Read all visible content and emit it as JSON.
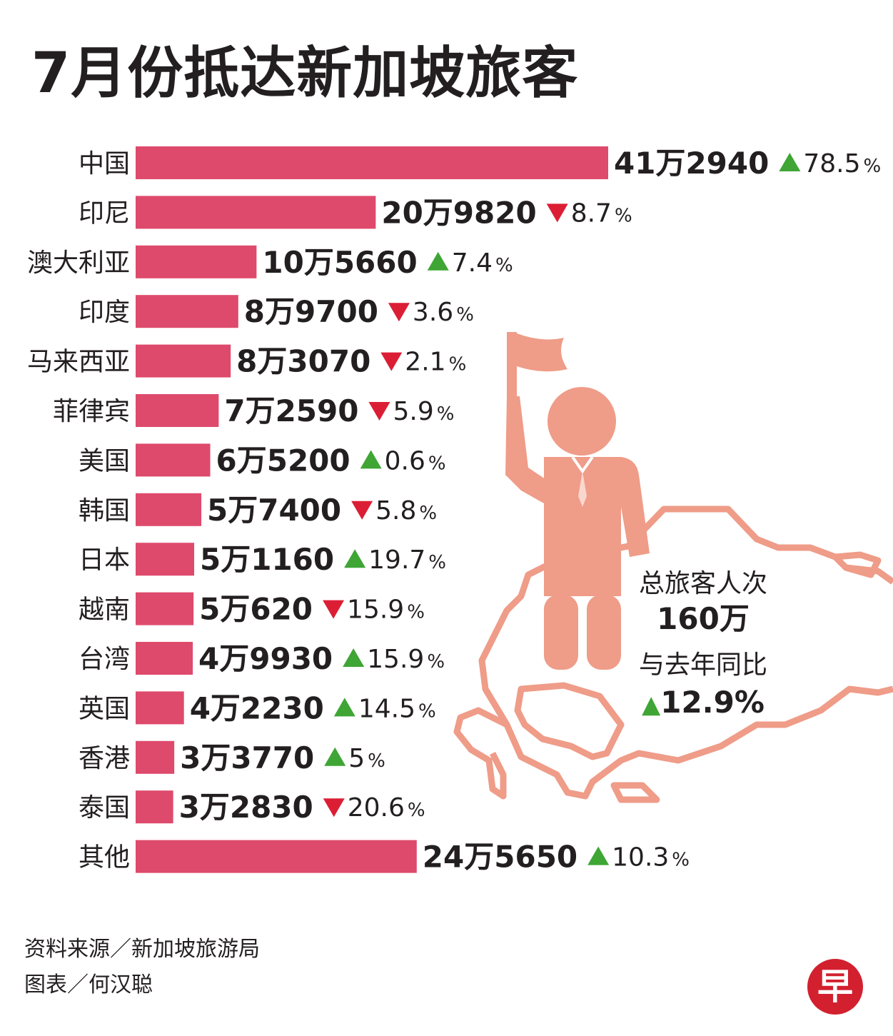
{
  "title": "7月份抵达新加坡旅客",
  "chart_data": {
    "type": "bar",
    "orientation": "horizontal",
    "unit": "travellers",
    "categories": [
      "中国",
      "印尼",
      "澳大利亚",
      "印度",
      "马来西亚",
      "菲律宾",
      "美国",
      "韩国",
      "日本",
      "越南",
      "台湾",
      "英国",
      "香港",
      "泰国",
      "其他"
    ],
    "values": [
      412940,
      209820,
      105660,
      89700,
      83070,
      72590,
      65200,
      57400,
      51160,
      50620,
      49930,
      42230,
      33770,
      32830,
      245650
    ],
    "value_labels": [
      "41万2940",
      "20万9820",
      "10万5660",
      "8万9700",
      "8万3070",
      "7万2590",
      "6万5200",
      "5万7400",
      "5万1160",
      "5万620",
      "4万9930",
      "4万2230",
      "3万3770",
      "3万2830",
      "24万5650"
    ],
    "changes": [
      "78.5",
      "8.7",
      "7.4",
      "3.6",
      "2.1",
      "5.9",
      "0.6",
      "5.8",
      "19.7",
      "15.9",
      "15.9",
      "14.5",
      "5",
      "20.6",
      "10.3"
    ],
    "directions": [
      "up",
      "down",
      "up",
      "down",
      "down",
      "down",
      "up",
      "down",
      "up",
      "down",
      "up",
      "up",
      "up",
      "down",
      "up"
    ],
    "percent_sign": "%",
    "colors": {
      "bar": "#de4a6c",
      "up": "#3fa535",
      "down": "#dc1e35"
    }
  },
  "summary": {
    "label": "总旅客人次",
    "total": "160万",
    "compare_label": "与去年同比",
    "change_symbol": "▲",
    "change": "12.9%"
  },
  "footer": {
    "source": "资料来源／新加坡旅游局",
    "credit": "图表／何汉聪"
  },
  "logo": {
    "text": "早",
    "color": "#d2202f"
  }
}
